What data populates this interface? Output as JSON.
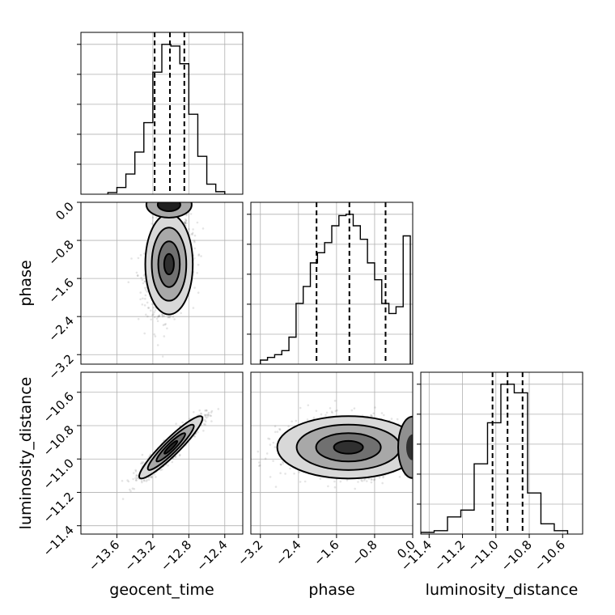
{
  "chart_data": {
    "type": "corner",
    "parameters": [
      "geocent_time",
      "phase",
      "luminosity_distance"
    ],
    "axis_labels": {
      "x": [
        "geocent_time",
        "phase",
        "luminosity_distance"
      ],
      "y": [
        "phase",
        "luminosity_distance"
      ]
    },
    "ranges": {
      "geocent_time": [
        -14.0,
        -12.2
      ],
      "phase": [
        -3.4,
        0.0
      ],
      "luminosity_distance": [
        -11.45,
        -10.48
      ]
    },
    "ticks": {
      "geocent_time": [
        -13.6,
        -13.2,
        -12.8,
        -12.4
      ],
      "phase": [
        -3.2,
        -2.4,
        -1.6,
        -0.8,
        0.0
      ],
      "luminosity_distance": [
        -11.4,
        -11.2,
        -11.0,
        -10.8,
        -10.6
      ]
    },
    "tick_labels": {
      "geocent_time": [
        "−13.6",
        "−13.2",
        "−12.8",
        "−12.4"
      ],
      "phase": [
        "−3.2",
        "−2.4",
        "−1.6",
        "−0.8",
        "0.0"
      ],
      "luminosity_distance": [
        "−11.4",
        "−11.2",
        "−11.0",
        "−10.8",
        "−10.6"
      ]
    },
    "quantiles": {
      "geocent_time": [
        -13.18,
        -13.01,
        -12.85
      ],
      "phase": [
        -2.02,
        -1.33,
        -0.57
      ],
      "luminosity_distance": [
        -11.02,
        -10.93,
        -10.84
      ]
    },
    "histograms": {
      "geocent_time": {
        "edges": [
          -13.7,
          -13.6,
          -13.5,
          -13.4,
          -13.3,
          -13.2,
          -13.1,
          -13.0,
          -12.9,
          -12.8,
          -12.7,
          -12.6,
          -12.5,
          -12.4
        ],
        "counts": [
          2,
          8,
          24,
          50,
          85,
          145,
          178,
          176,
          155,
          95,
          45,
          12,
          3
        ]
      },
      "phase": {
        "edges": [
          -3.2,
          -3.05,
          -2.9,
          -2.75,
          -2.6,
          -2.45,
          -2.3,
          -2.15,
          -2.0,
          -1.85,
          -1.7,
          -1.55,
          -1.4,
          -1.25,
          -1.1,
          -0.95,
          -0.8,
          -0.65,
          -0.5,
          -0.35,
          -0.2,
          -0.05
        ],
        "counts": [
          6,
          10,
          14,
          20,
          40,
          90,
          115,
          150,
          165,
          180,
          205,
          220,
          222,
          205,
          185,
          150,
          125,
          90,
          75,
          85,
          190
        ]
      },
      "luminosity_distance": {
        "edges": [
          -11.45,
          -11.37,
          -11.29,
          -11.21,
          -11.13,
          -11.05,
          -10.97,
          -10.89,
          -10.81,
          -10.73,
          -10.65,
          -10.57
        ],
        "counts": [
          2,
          4,
          20,
          28,
          82,
          130,
          175,
          165,
          48,
          12,
          4
        ]
      }
    },
    "grid": true
  }
}
